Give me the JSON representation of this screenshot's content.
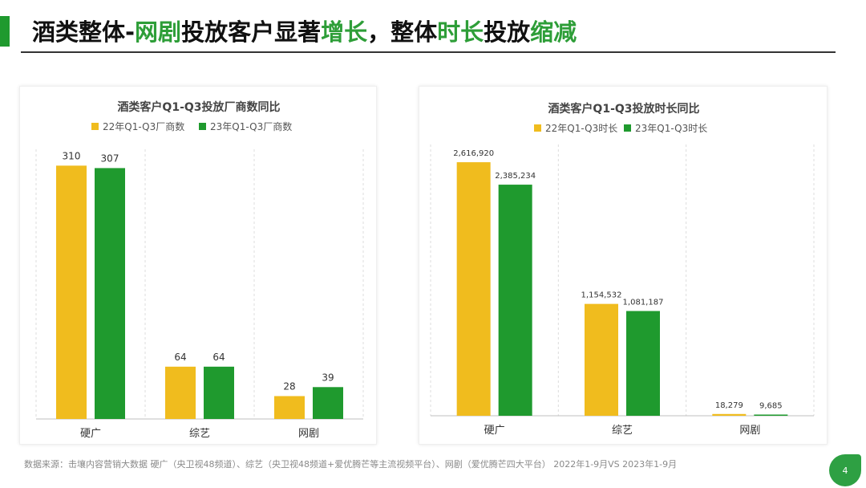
{
  "header": {
    "title_segments": [
      {
        "text": "酒类整体-",
        "color": "#111111"
      },
      {
        "text": "网剧",
        "color": "#2e9e38"
      },
      {
        "text": "投放客户显著",
        "color": "#111111"
      },
      {
        "text": "增长",
        "color": "#2e9e38"
      },
      {
        "text": "，整体",
        "color": "#111111"
      },
      {
        "text": "时长",
        "color": "#2e9e38"
      },
      {
        "text": "投放",
        "color": "#111111"
      },
      {
        "text": "缩减",
        "color": "#2e9e38"
      }
    ],
    "accent_color": "#1f9a2e"
  },
  "colors": {
    "series_2022": "#f0bc1e",
    "series_2023": "#1f9a2e",
    "badge": "#2ea043"
  },
  "chart_data": [
    {
      "type": "bar",
      "title": "酒类客户Q1-Q3投放厂商数同比",
      "categories": [
        "硬广",
        "综艺",
        "网剧"
      ],
      "series": [
        {
          "name": "22年Q1-Q3厂商数",
          "values": [
            310,
            64,
            28
          ]
        },
        {
          "name": "23年Q1-Q3厂商数",
          "values": [
            307,
            64,
            39
          ]
        }
      ],
      "value_labels": [
        [
          "310",
          "64",
          "28"
        ],
        [
          "307",
          "64",
          "39"
        ]
      ],
      "ylim": [
        0,
        330
      ],
      "legend": "top"
    },
    {
      "type": "bar",
      "title": "酒类客户Q1-Q3投放时长同比",
      "categories": [
        "硬广",
        "综艺",
        "网剧"
      ],
      "series": [
        {
          "name": "22年Q1-Q3时长",
          "values": [
            2616920,
            1154532,
            18279
          ]
        },
        {
          "name": "23年Q1-Q3时长",
          "values": [
            2385234,
            1081187,
            9685
          ]
        }
      ],
      "value_labels": [
        [
          "2,616,920",
          "1,154,532",
          "18,279"
        ],
        [
          "2,385,234",
          "1,081,187",
          "9,685"
        ]
      ],
      "ylim": [
        0,
        2800000
      ],
      "legend": "top"
    }
  ],
  "footer": {
    "source": "数据来源：击壤内容营销大数据 硬广（央卫视48频道）、综艺（央卫视48频道+爱优腾芒等主流视频平台）、网剧（爱优腾芒四大平台） 2022年1-9月VS 2023年1-9月",
    "page_number": "4"
  }
}
